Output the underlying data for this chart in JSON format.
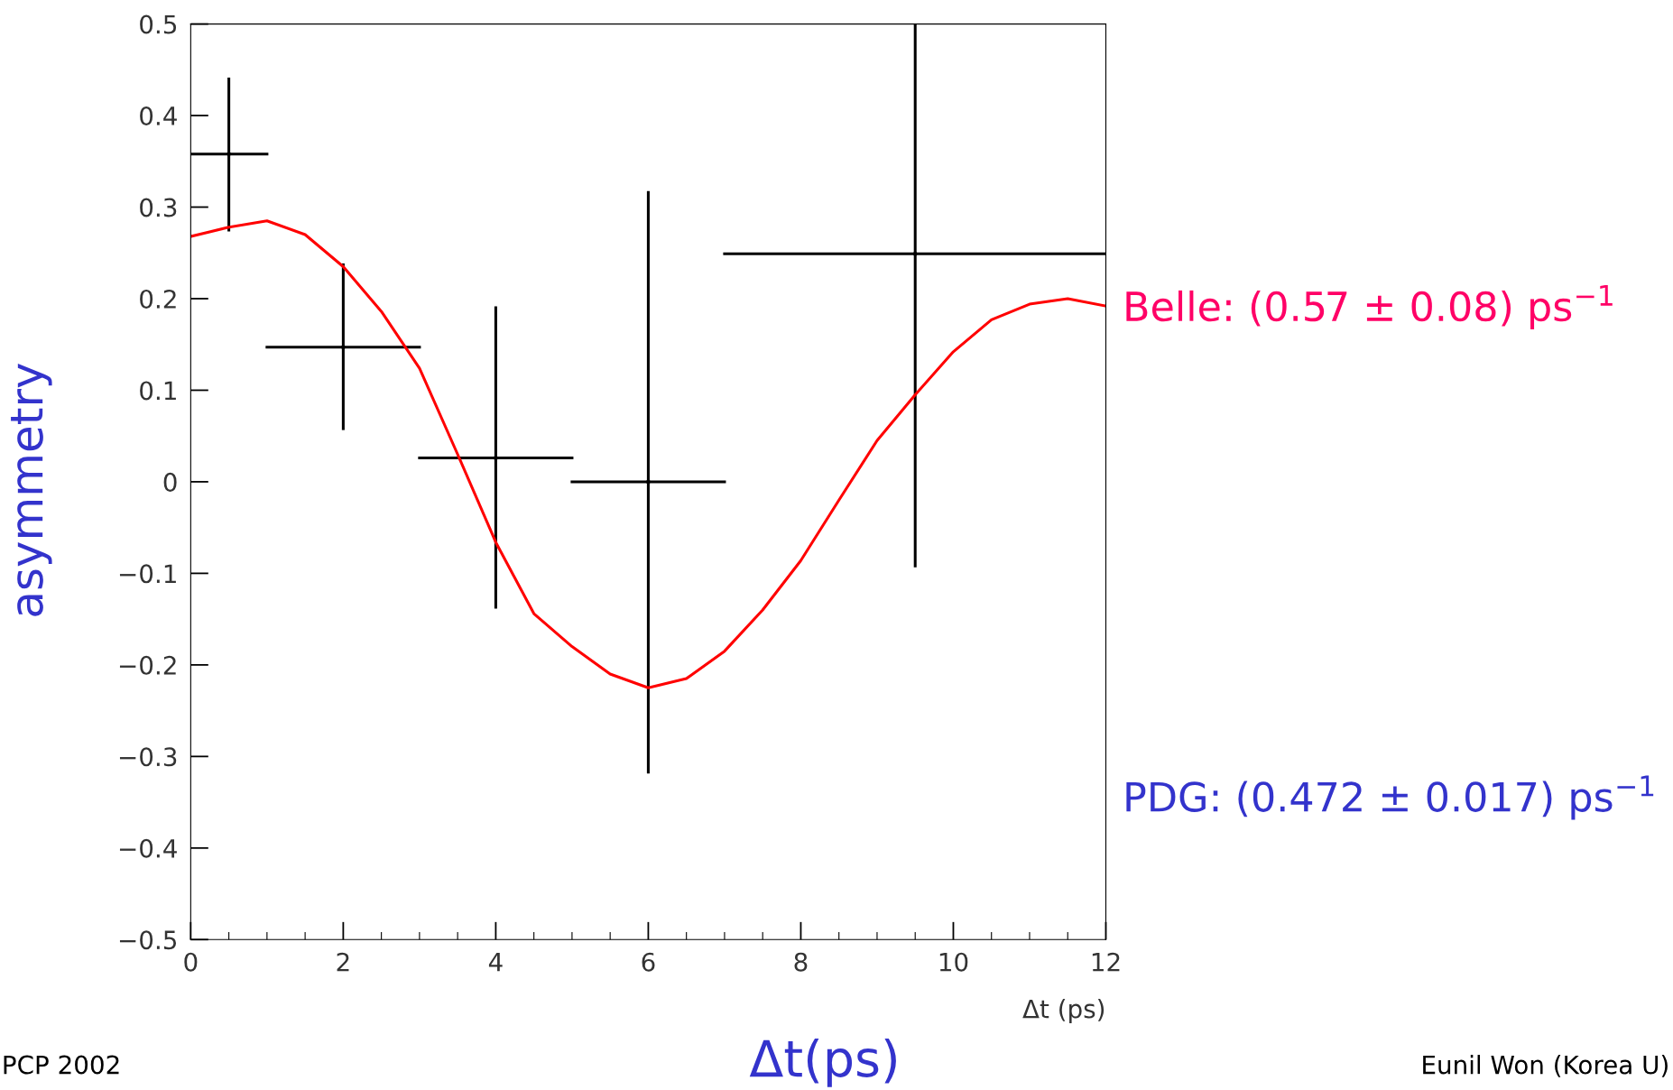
{
  "chart_data": {
    "type": "scatter",
    "xlabel": "Δt (ps)",
    "ylabel": "asymmetry",
    "xlim": [
      0,
      12
    ],
    "xticks": [
      0,
      2,
      4,
      6,
      8,
      10,
      12
    ],
    "ylim": [
      -0.5,
      0.5
    ],
    "yticks": [
      {
        "value": -0.5,
        "label": "−0.5"
      },
      {
        "value": -0.4,
        "label": "−0.4"
      },
      {
        "value": -0.3,
        "label": "−0.3"
      },
      {
        "value": -0.2,
        "label": "−0.2"
      },
      {
        "value": -0.1,
        "label": "−0.1"
      },
      0,
      0.1,
      0.2,
      0.3,
      0.4,
      0.5
    ],
    "grid": false,
    "legend": false,
    "series": [
      {
        "color": "#000000",
        "x": [
          0.5,
          2,
          4,
          6,
          9.5
        ],
        "values": [
          0.358,
          0.147,
          0.026,
          0.0,
          0.249
        ],
        "errors": [
          [
            0.275,
            0.44
          ],
          [
            0.058,
            0.237
          ],
          [
            -0.137,
            0.19
          ],
          [
            -0.317,
            0.316
          ],
          [
            -0.092,
            0.5
          ]
        ],
        "xerrors": [
          [
            0,
            1
          ],
          [
            1,
            3
          ],
          [
            3,
            5
          ],
          [
            5,
            7
          ],
          [
            7,
            12
          ]
        ]
      },
      {
        "type": "line",
        "color": "#ff0000",
        "line_style": "solid",
        "marker": "none",
        "x": [
          0,
          0.5,
          1,
          1.5,
          2,
          2.5,
          3,
          3.5,
          4,
          4.5,
          5,
          5.5,
          6,
          6.5,
          7,
          7.5,
          8,
          8.5,
          9,
          9.5,
          10,
          10.5,
          11,
          11.5,
          12
        ],
        "values": [
          0.268,
          0.278,
          0.285,
          0.27,
          0.235,
          0.186,
          0.124,
          0.03,
          -0.066,
          -0.144,
          -0.18,
          -0.21,
          -0.225,
          -0.215,
          -0.185,
          -0.14,
          -0.086,
          -0.02,
          0.045,
          0.095,
          0.142,
          0.177,
          0.194,
          0.2,
          0.192
        ]
      }
    ],
    "annotations": [
      "Belle: (0.57 ± 0.08) ps$^{−1}$",
      "PDG: (0.472 ± 0.017) ps$^{−1}$",
      "Δt(ps)",
      "PCP 2002",
      "Eunil Won (Korea U)"
    ]
  }
}
